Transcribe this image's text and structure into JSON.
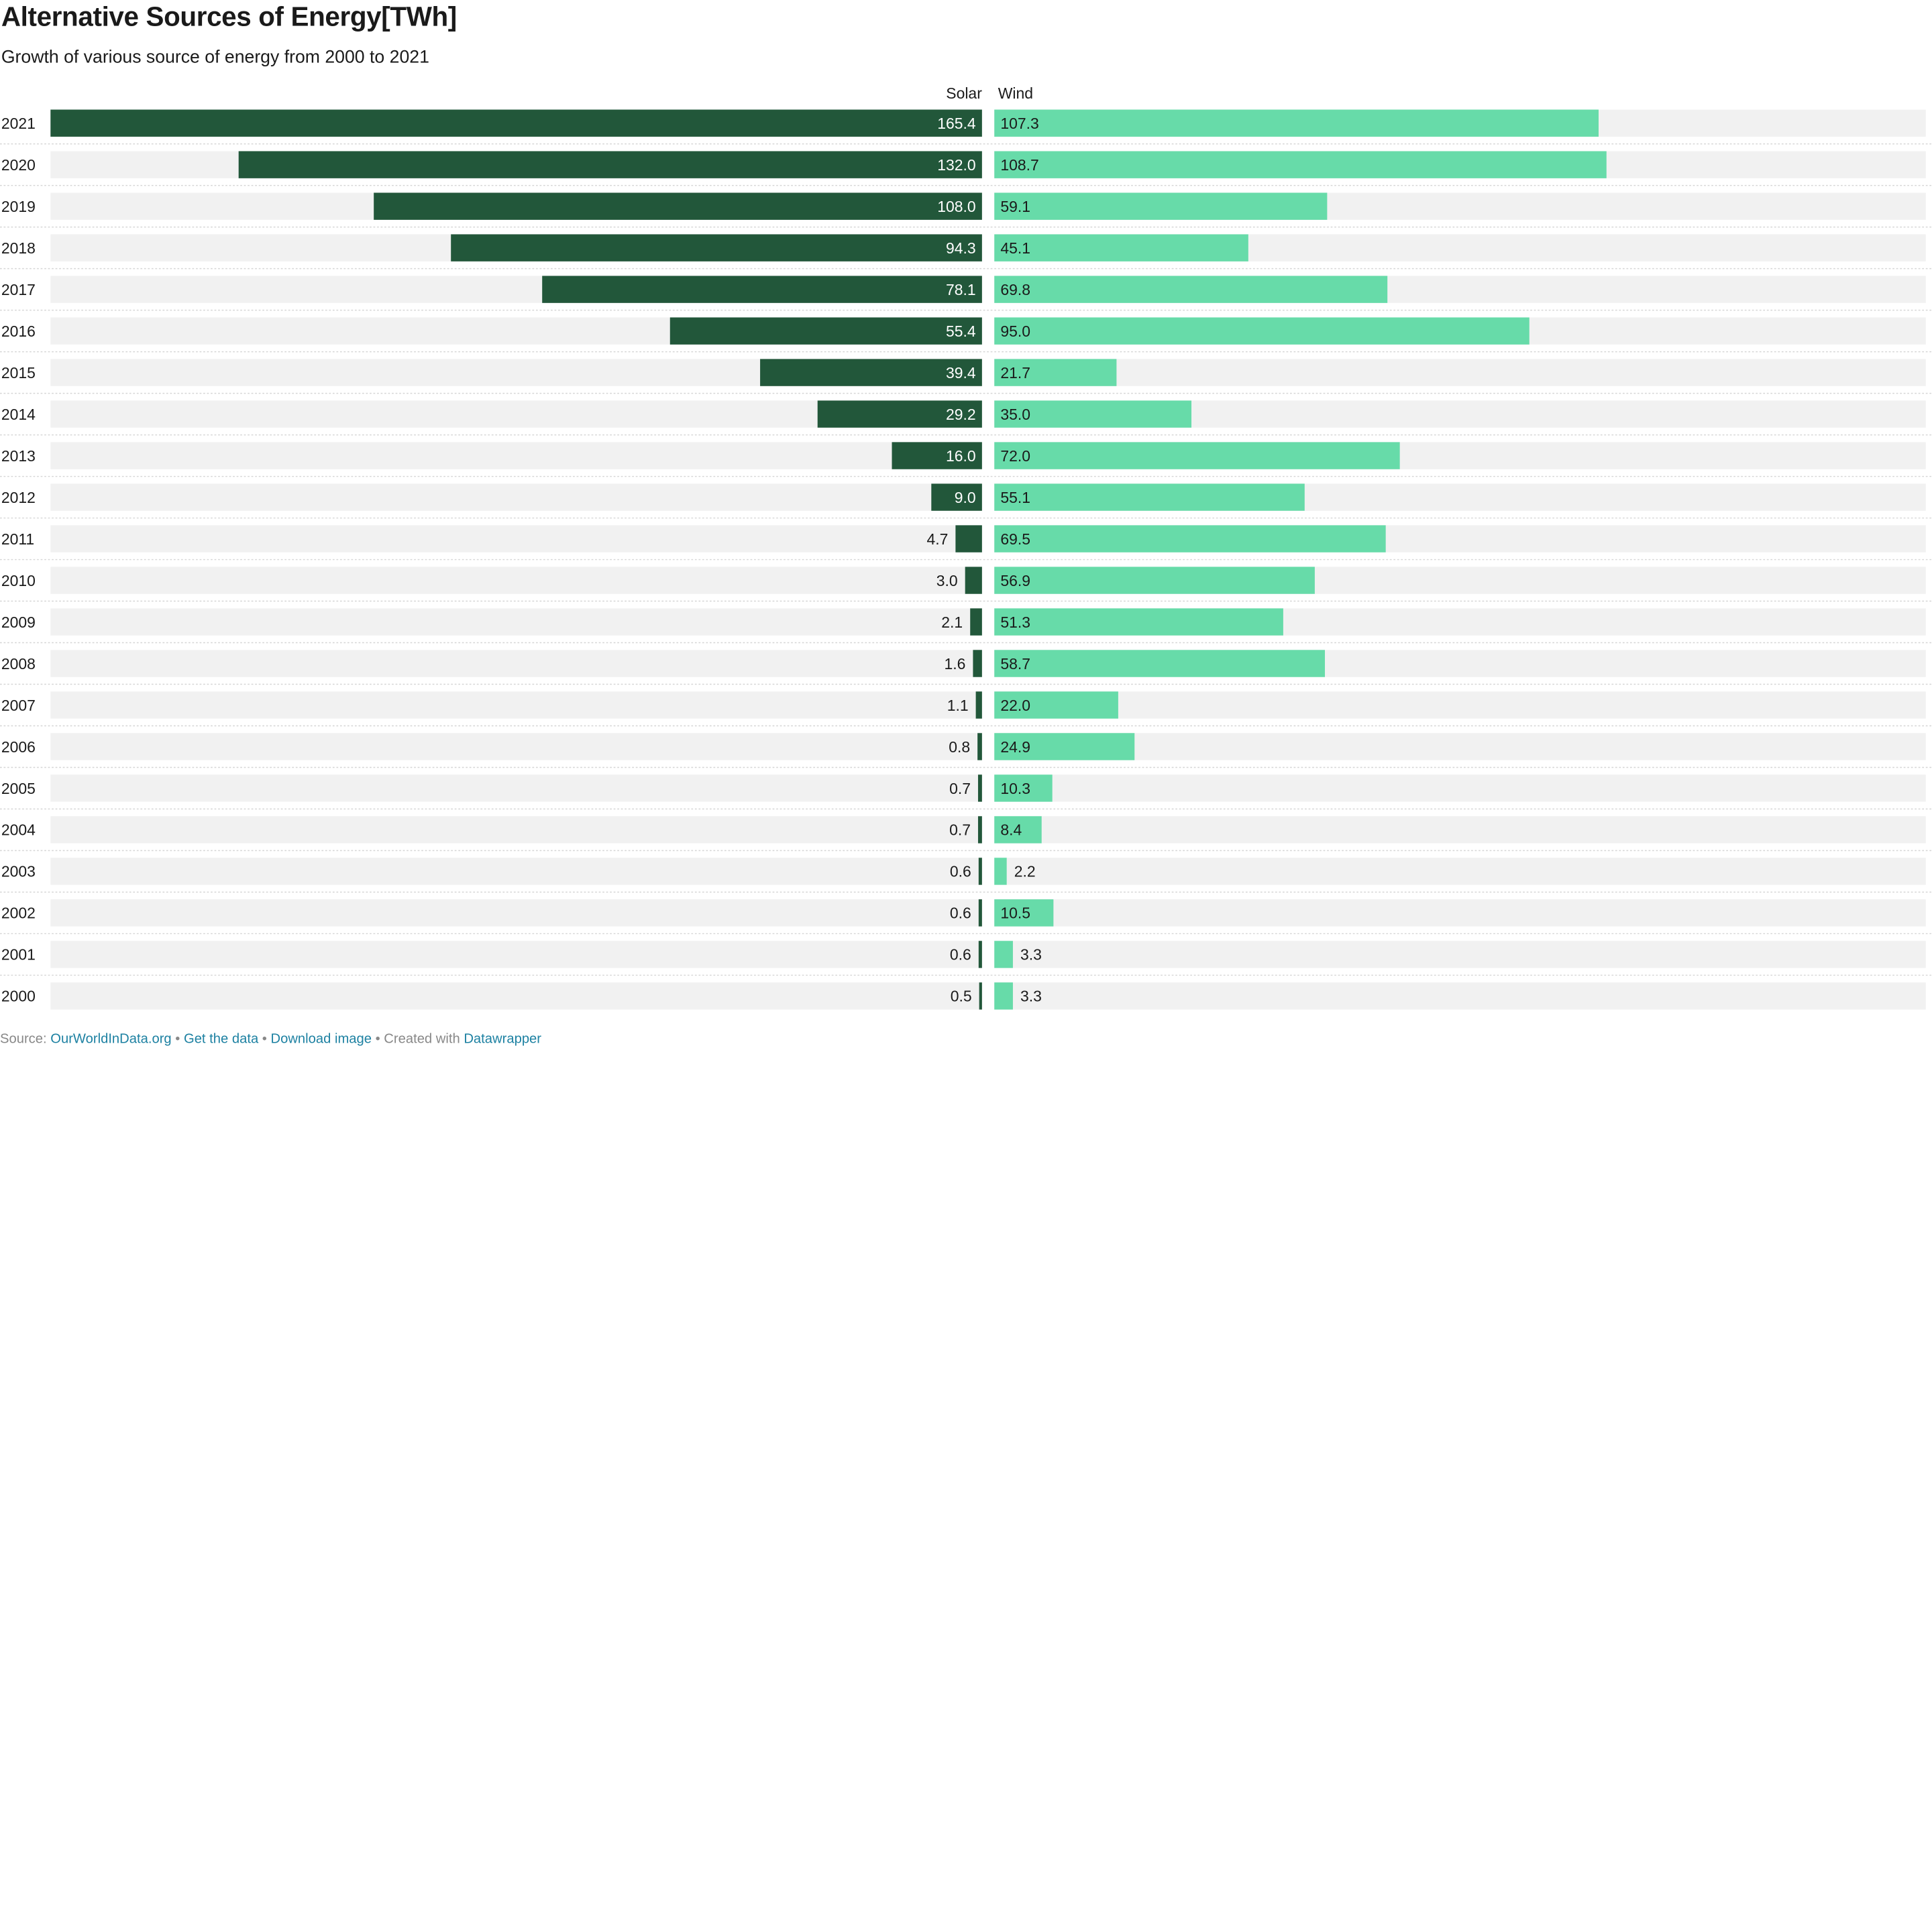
{
  "title": "Alternative Sources of Energy[TWh]",
  "subtitle": "Growth of various source of energy from 2000 to 2021",
  "footer": {
    "source_label": "Source: ",
    "source_link": "OurWorldInData.org",
    "sep1": " • ",
    "get_data": "Get the data",
    "sep2": " • ",
    "download": "Download image",
    "created": " • Created with ",
    "tool": "Datawrapper"
  },
  "colors": {
    "solar": "#22573a",
    "wind": "#67dba9",
    "track": "#f1f1f1",
    "divider": "#d6d6d6"
  },
  "chart_data": {
    "type": "bar",
    "orientation": "horizontal",
    "layout": "split-bar",
    "categories": [
      "2021",
      "2020",
      "2019",
      "2018",
      "2017",
      "2016",
      "2015",
      "2014",
      "2013",
      "2012",
      "2011",
      "2010",
      "2009",
      "2008",
      "2007",
      "2006",
      "2005",
      "2004",
      "2003",
      "2002",
      "2001",
      "2000"
    ],
    "series": [
      {
        "name": "Solar",
        "values": [
          165.4,
          132.0,
          108.0,
          94.3,
          78.1,
          55.4,
          39.4,
          29.2,
          16.0,
          9.0,
          4.7,
          3.0,
          2.1,
          1.6,
          1.1,
          0.8,
          0.7,
          0.7,
          0.6,
          0.6,
          0.6,
          0.5
        ],
        "labels": [
          "165.4",
          "132.0",
          "108.0",
          "94.3",
          "78.1",
          "55.4",
          "39.4",
          "29.2",
          "16.0",
          "9.0",
          "4.7",
          "3.0",
          "2.1",
          "1.6",
          "1.1",
          "0.8",
          "0.7",
          "0.7",
          "0.6",
          "0.6",
          "0.6",
          "0.5"
        ]
      },
      {
        "name": "Wind",
        "values": [
          107.3,
          108.7,
          59.1,
          45.1,
          69.8,
          95.0,
          21.7,
          35.0,
          72.0,
          55.1,
          69.5,
          56.9,
          51.3,
          58.7,
          22.0,
          24.9,
          10.3,
          8.4,
          2.2,
          10.5,
          3.3,
          3.3
        ],
        "labels": [
          "107.3",
          "108.7",
          "59.1",
          "45.1",
          "69.8",
          "95.0",
          "21.7",
          "35.0",
          "72.0",
          "55.1",
          "69.5",
          "56.9",
          "51.3",
          "58.7",
          "22.0",
          "24.9",
          "10.3",
          "8.4",
          "2.2",
          "10.5",
          "3.3",
          "3.3"
        ]
      }
    ],
    "xlim": [
      0,
      165.4
    ],
    "grid": false,
    "legend": "column-headers"
  }
}
